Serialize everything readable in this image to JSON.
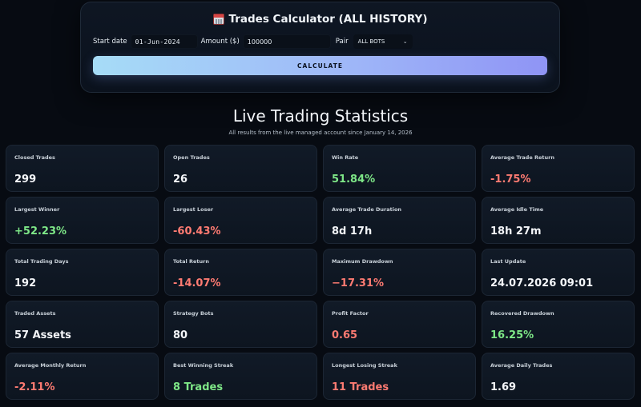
{
  "calculator": {
    "title": "Trades Calculator (ALL HISTORY)",
    "icon": "calendar-icon",
    "start_date_label": "Start date",
    "start_date_value": "01-Jun-2024",
    "amount_label": "Amount ($)",
    "amount_value": "100000",
    "pair_label": "Pair",
    "pair_value": "ALL BOTS",
    "calculate_label": "CALCULATE",
    "button_gradient": [
      "#a6dcf7",
      "#8f94f5"
    ]
  },
  "stats": {
    "title": "Live Trading Statistics",
    "subtitle": "All results from the live managed account since January 14, 2026",
    "colors": {
      "positive": "#7ee787",
      "negative": "#ff7b72",
      "neutral": "#f5f7fa"
    },
    "cards": [
      {
        "label": "Closed Trades",
        "value": "299",
        "tone": "neu"
      },
      {
        "label": "Open Trades",
        "value": "26",
        "tone": "neu"
      },
      {
        "label": "Win Rate",
        "value": "51.84%",
        "tone": "pos"
      },
      {
        "label": "Average Trade Return",
        "value": "-1.75%",
        "tone": "neg"
      },
      {
        "label": "Largest Winner",
        "value": "+52.23%",
        "tone": "pos"
      },
      {
        "label": "Largest Loser",
        "value": "-60.43%",
        "tone": "neg"
      },
      {
        "label": "Average Trade Duration",
        "value": "8d 17h",
        "tone": "neu"
      },
      {
        "label": "Average Idle Time",
        "value": "18h 27m",
        "tone": "neu"
      },
      {
        "label": "Total Trading Days",
        "value": "192",
        "tone": "neu"
      },
      {
        "label": "Total Return",
        "value": "-14.07%",
        "tone": "neg"
      },
      {
        "label": "Maximum Drawdown",
        "value": "−17.31%",
        "tone": "neg"
      },
      {
        "label": "Last Update",
        "value": "24.07.2026 09:01",
        "tone": "neu"
      },
      {
        "label": "Traded Assets",
        "value": "57 Assets",
        "tone": "neu"
      },
      {
        "label": "Strategy Bots",
        "value": "80",
        "tone": "neu"
      },
      {
        "label": "Profit Factor",
        "value": "0.65",
        "tone": "neg"
      },
      {
        "label": "Recovered Drawdown",
        "value": "16.25%",
        "tone": "pos"
      },
      {
        "label": "Average Monthly Return",
        "value": "-2.11%",
        "tone": "neg"
      },
      {
        "label": "Best Winning Streak",
        "value": "8 Trades",
        "tone": "pos"
      },
      {
        "label": "Longest Losing Streak",
        "value": "11 Trades",
        "tone": "neg"
      },
      {
        "label": "Average Daily Trades",
        "value": "1.69",
        "tone": "neu"
      }
    ]
  }
}
